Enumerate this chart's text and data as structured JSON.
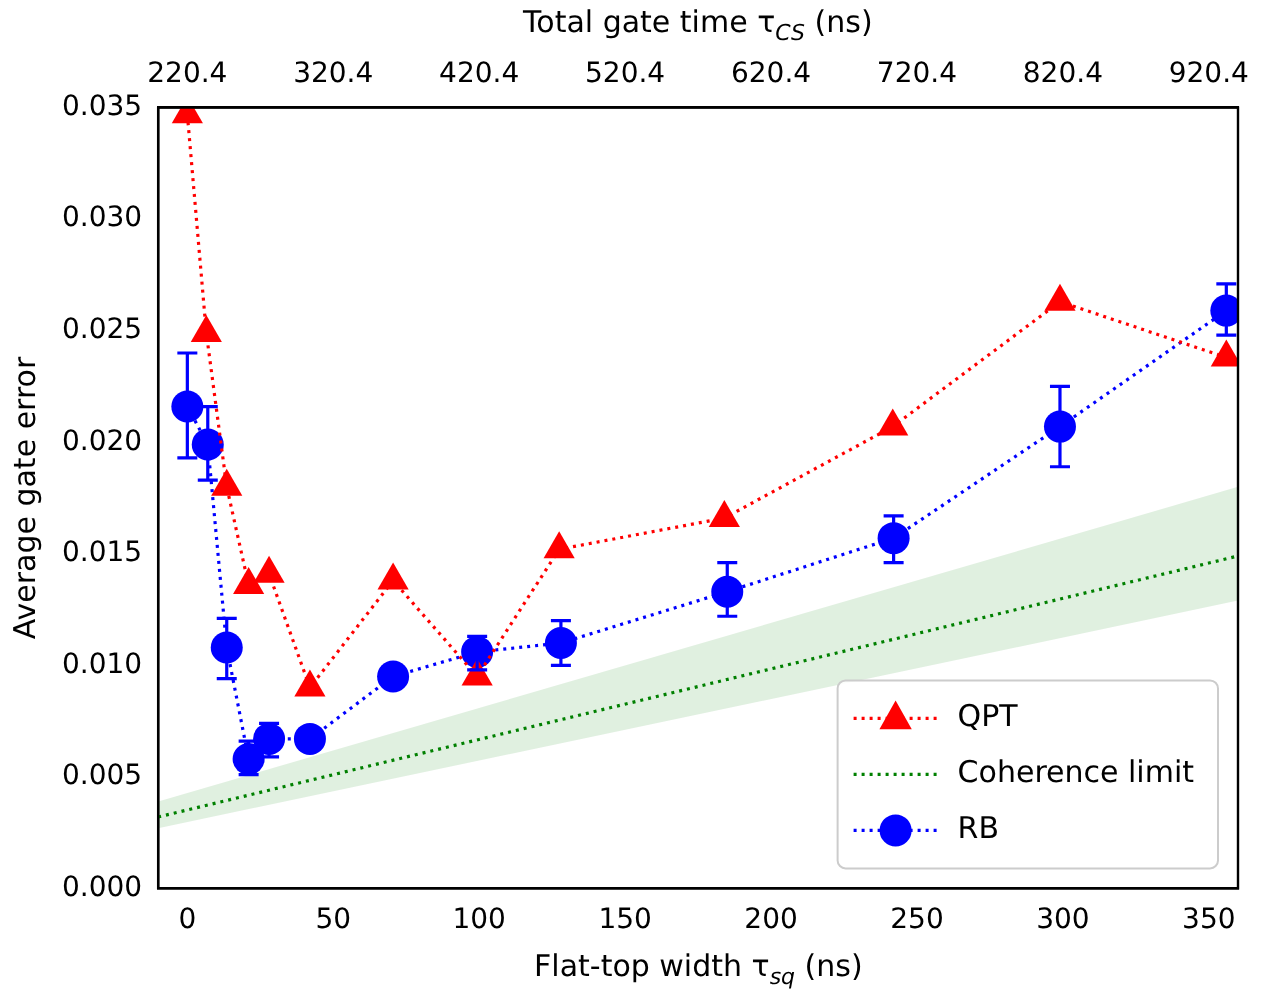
{
  "chart_data": {
    "type": "line",
    "xlabel": "Flat-top width τ$_{sq}$ (ns)",
    "x2label": "Total gate time τ$_{CS}$ (ns)",
    "ylabel": "Average gate error",
    "xlim": [
      -10,
      360
    ],
    "xticks": [
      0,
      50,
      100,
      150,
      200,
      250,
      300,
      350
    ],
    "x2lim": [
      200.4,
      940.4
    ],
    "x2ticks": [
      220.4,
      320.4,
      420.4,
      520.4,
      620.4,
      720.4,
      820.4,
      920.4
    ],
    "ylim": [
      0,
      0.035
    ],
    "yticks": [
      {
        "value": 0,
        "label": "0.000"
      },
      {
        "value": 0.005,
        "label": "0.005"
      },
      {
        "value": 0.01,
        "label": "0.010"
      },
      {
        "value": 0.015,
        "label": "0.015"
      },
      {
        "value": 0.02,
        "label": "0.020"
      },
      {
        "value": 0.025,
        "label": "0.025"
      },
      {
        "value": 0.03,
        "label": "0.030"
      },
      {
        "value": 0.035,
        "label": "0.035"
      }
    ],
    "grid": false,
    "legend": "bottom right",
    "line_style": "dotted",
    "series": [
      {
        "name": "QPT",
        "color": "#ff0000",
        "marker": "triangle",
        "x": [
          0,
          6.5,
          13.5,
          21,
          28,
          42,
          70.5,
          99.3,
          127.4,
          184,
          241.7,
          299,
          356
        ],
        "values": [
          0.0347,
          0.0249,
          0.018,
          0.0136,
          0.0141,
          0.009,
          0.0138,
          0.0095,
          0.0152,
          0.0166,
          0.0207,
          0.0263,
          0.0238
        ]
      },
      {
        "name": "Coherence limit",
        "color": "#008000",
        "marker": "none",
        "x": [
          -10,
          360
        ],
        "values": [
          0.0032,
          0.0149
        ],
        "lower": [
          0.0027,
          0.0129
        ],
        "upper": [
          0.0039,
          0.018
        ]
      },
      {
        "name": "RB",
        "color": "#0000ff",
        "marker": "circle",
        "x": [
          0,
          7,
          13.5,
          21,
          28,
          42,
          70.5,
          99.3,
          128,
          185,
          242,
          299,
          356
        ],
        "values": [
          0.0216,
          0.0199,
          0.0108,
          0.0058,
          0.0067,
          0.0067,
          0.0095,
          0.0106,
          0.011,
          0.0133,
          0.0157,
          0.0207,
          0.0259
        ],
        "errors": [
          [
            0.0193,
            0.024
          ],
          [
            0.0183,
            0.0216
          ],
          [
            0.0094,
            0.0121
          ],
          [
            0.0051,
            0.0066
          ],
          [
            0.0059,
            0.0074
          ],
          null,
          null,
          [
            0.0098,
            0.0113
          ],
          [
            0.01,
            0.012
          ],
          [
            0.0122,
            0.0146
          ],
          [
            0.0146,
            0.0167
          ],
          [
            0.0189,
            0.0225
          ],
          [
            0.0248,
            0.0271
          ]
        ]
      }
    ]
  }
}
